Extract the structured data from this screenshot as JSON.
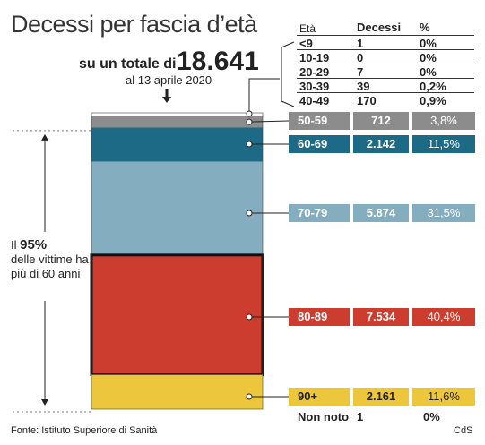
{
  "title": "Decessi per fascia d’età",
  "total": {
    "lead": "su un totale di",
    "value": "18.641",
    "date": "al 13 aprile 2020"
  },
  "table": {
    "headers": {
      "age": "Età",
      "deaths": "Decessi",
      "pct": "%"
    },
    "rows": [
      {
        "age": "<9",
        "deaths": "1",
        "pct": "0%"
      },
      {
        "age": "10-19",
        "deaths": "0",
        "pct": "0%"
      },
      {
        "age": "20-29",
        "deaths": "7",
        "pct": "0%"
      },
      {
        "age": "30-39",
        "deaths": "39",
        "pct": "0,2%"
      },
      {
        "age": "40-49",
        "deaths": "170",
        "pct": "0,9%"
      }
    ]
  },
  "side_note": {
    "lead": "Il",
    "pct": "95%",
    "rest": "delle vittime ha più di 60 anni"
  },
  "footer": {
    "source": "Fonte: Istituto Superiore di Sanità",
    "credit": "CdS"
  },
  "chart_data": {
    "type": "bar",
    "orientation": "stacked-vertical",
    "total": 18641,
    "categories": [
      "<9",
      "10-19",
      "20-29",
      "30-39",
      "40-49",
      "50-59",
      "60-69",
      "70-79",
      "80-89",
      "90+",
      "Non noto"
    ],
    "values": [
      1,
      0,
      7,
      39,
      170,
      712,
      2142,
      5874,
      7534,
      2161,
      1
    ],
    "labels": [
      {
        "age": "50-59",
        "deaths": "712",
        "pct": "3,8%",
        "color": "#8c8c8c"
      },
      {
        "age": "60-69",
        "deaths": "2.142",
        "pct": "11,5%",
        "color": "#1d6a86"
      },
      {
        "age": "70-79",
        "deaths": "5.874",
        "pct": "31,5%",
        "color": "#85adc0"
      },
      {
        "age": "80-89",
        "deaths": "7.534",
        "pct": "40,4%",
        "color": "#cc3d30"
      },
      {
        "age": "90+",
        "deaths": "2.161",
        "pct": "11,6%",
        "color": "#ecc73e"
      },
      {
        "age": "Non noto",
        "deaths": "1",
        "pct": "0%",
        "color": ""
      }
    ],
    "colors": {
      "under_50": "#ffffff",
      "50-59": "#8c8c8c",
      "60-69": "#1d6a86",
      "70-79": "#85adc0",
      "80-89": "#cc3d30",
      "90+": "#ecc73e",
      "highlight_border": "#111111",
      "axis": "#333333"
    }
  }
}
